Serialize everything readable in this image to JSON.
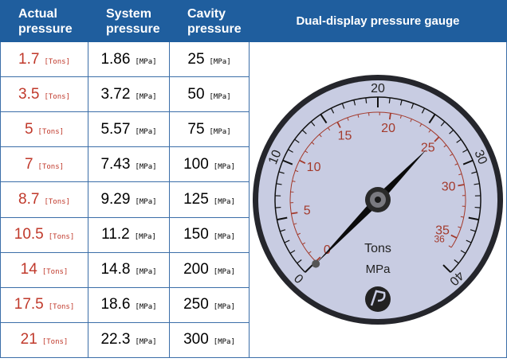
{
  "table": {
    "headers": [
      "Actual pressure",
      "System pressure",
      "Cavity pressure",
      "Dual-display pressure gauge"
    ],
    "rows": [
      {
        "actual": 1.7,
        "actual_unit": "[Tons]",
        "system": 1.86,
        "system_unit": "[MPa]",
        "cavity": 25,
        "cavity_unit": "[MPa]"
      },
      {
        "actual": 3.5,
        "actual_unit": "[Tons]",
        "system": 3.72,
        "system_unit": "[MPa]",
        "cavity": 50,
        "cavity_unit": "[MPa]"
      },
      {
        "actual": 5,
        "actual_unit": "[Tons]",
        "system": 5.57,
        "system_unit": "[MPa]",
        "cavity": 75,
        "cavity_unit": "[MPa]"
      },
      {
        "actual": 7,
        "actual_unit": "[Tons]",
        "system": 7.43,
        "system_unit": "[MPa]",
        "cavity": 100,
        "cavity_unit": "[MPa]"
      },
      {
        "actual": 8.7,
        "actual_unit": "[Tons]",
        "system": 9.29,
        "system_unit": "[MPa]",
        "cavity": 125,
        "cavity_unit": "[MPa]"
      },
      {
        "actual": 10.5,
        "actual_unit": "[Tons]",
        "system": 11.2,
        "system_unit": "[MPa]",
        "cavity": 150,
        "cavity_unit": "[MPa]"
      },
      {
        "actual": 14,
        "actual_unit": "[Tons]",
        "system": 14.8,
        "system_unit": "[MPa]",
        "cavity": 200,
        "cavity_unit": "[MPa]"
      },
      {
        "actual": 17.5,
        "actual_unit": "[Tons]",
        "system": 18.6,
        "system_unit": "[MPa]",
        "cavity": 250,
        "cavity_unit": "[MPa]"
      },
      {
        "actual": 21,
        "actual_unit": "[Tons]",
        "system": 22.3,
        "system_unit": "[MPa]",
        "cavity": 300,
        "cavity_unit": "[MPa]"
      }
    ]
  },
  "gauge": {
    "tons_label": "Tons",
    "mpa_label": "MPa",
    "tons_ticks": [
      0,
      5,
      10,
      15,
      20,
      25,
      30,
      35,
      36
    ],
    "mpa_ticks": [
      0,
      10,
      20,
      30,
      40
    ]
  }
}
